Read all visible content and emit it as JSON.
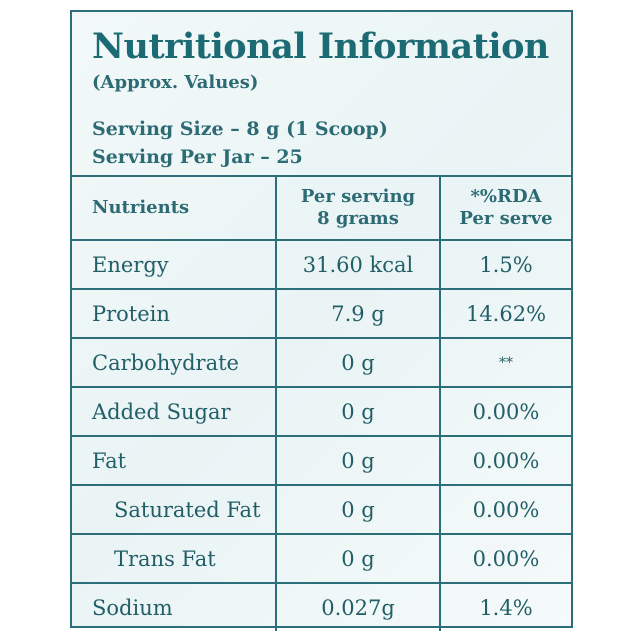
{
  "title": "Nutritional Information",
  "subtitle": "(Approx. Values)",
  "serving_size": "Serving Size – 8 g (1 Scoop)",
  "serving_per_jar": "Serving Per Jar – 25",
  "headers": {
    "nutrients": "Nutrients",
    "per_serving_line1": "Per serving",
    "per_serving_line2": "8 grams",
    "rda_line1": "*%RDA",
    "rda_line2": "Per serve"
  },
  "rows": [
    {
      "name": "Energy",
      "value": "31.60 kcal",
      "rda": "1.5%"
    },
    {
      "name": "Protein",
      "value": "7.9 g",
      "rda": "14.62%"
    },
    {
      "name": "Carbohydrate",
      "value": "0 g",
      "rda": "**"
    },
    {
      "name": "Added Sugar",
      "value": "0 g",
      "rda": "0.00%"
    },
    {
      "name": "Fat",
      "value": "0 g",
      "rda": "0.00%"
    },
    {
      "name": "Saturated Fat",
      "value": "0 g",
      "rda": "0.00%"
    },
    {
      "name": "Trans Fat",
      "value": "0 g",
      "rda": "0.00%"
    },
    {
      "name": "Sodium",
      "value": "0.027g",
      "rda": "1.4%"
    }
  ],
  "colors": {
    "accent": "#2c6f78",
    "background": "#eef6f7"
  }
}
